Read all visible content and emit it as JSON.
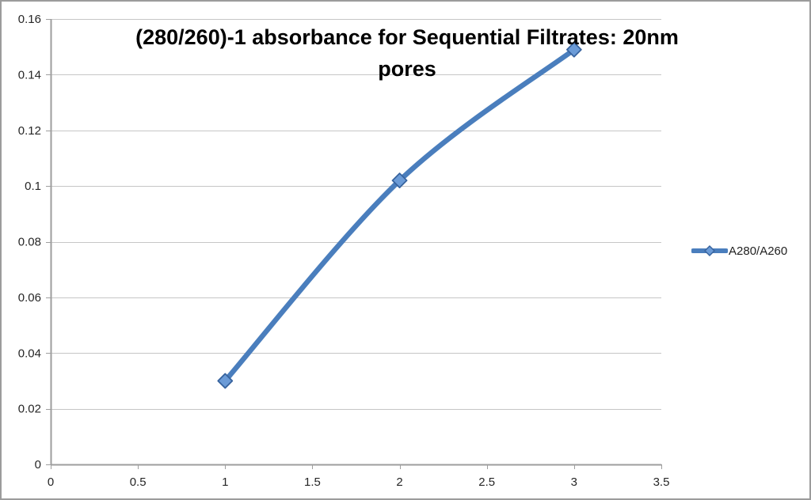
{
  "chart_data": {
    "type": "line",
    "title": "(280/260)-1 absorbance for Sequential Filtrates: 20nm pores",
    "title_lines": [
      "(280/260)-1 absorbance for Sequential Filtrates: 20nm",
      "pores"
    ],
    "series": [
      {
        "name": "A280/A260",
        "x": [
          1,
          2,
          3
        ],
        "y": [
          0.03,
          0.102,
          0.149
        ]
      }
    ],
    "xlabel": "",
    "ylabel": "",
    "xlim": [
      0,
      3.5
    ],
    "ylim": [
      0,
      0.16
    ],
    "xticks": [
      0,
      0.5,
      1,
      1.5,
      2,
      2.5,
      3,
      3.5
    ],
    "xtick_labels": [
      "0",
      "0.5",
      "1",
      "1.5",
      "2",
      "2.5",
      "3",
      "3.5"
    ],
    "yticks": [
      0,
      0.02,
      0.04,
      0.06,
      0.08,
      0.1,
      0.12,
      0.14,
      0.16
    ],
    "ytick_labels": [
      "0",
      "0.02",
      "0.04",
      "0.06",
      "0.08",
      "0.1",
      "0.12",
      "0.14",
      "0.16"
    ],
    "grid": "horizontal",
    "smoothed_line": true,
    "legend_position": "right",
    "legend_entries": [
      "A280/A260"
    ],
    "colors": {
      "line": "#4a7ebd",
      "marker_fill": "#6b9bd7",
      "marker_edge": "#38649f",
      "gridline": "#c6c6c6",
      "axis": "#9e9e9e",
      "tick_text": "#262626",
      "title_text": "#000000",
      "frame_border": "#9b9b9b"
    }
  }
}
